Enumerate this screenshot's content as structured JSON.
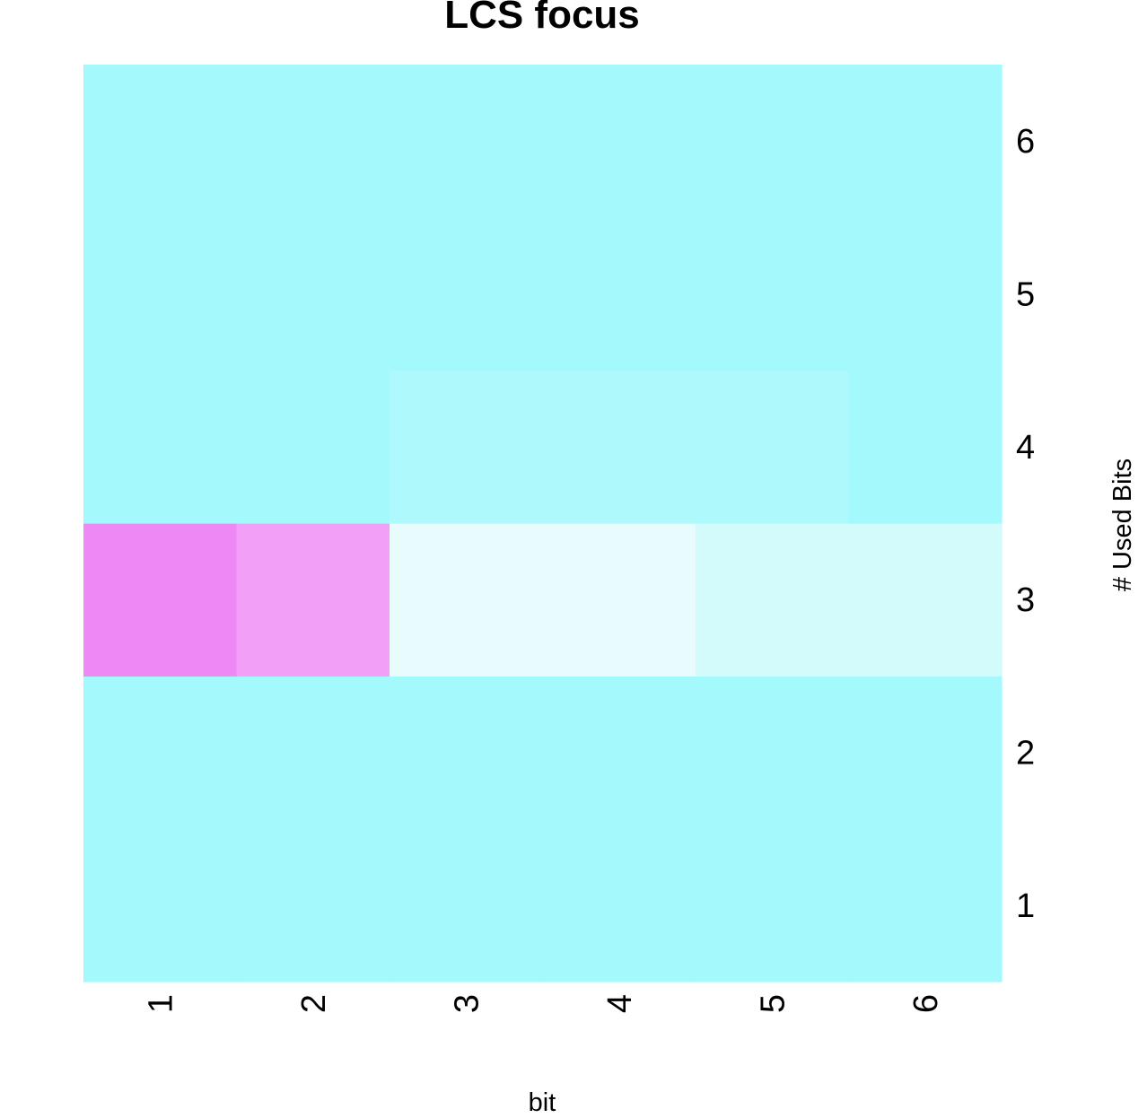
{
  "chart_data": {
    "type": "heatmap",
    "title": "LCS focus",
    "xlabel": "bit",
    "ylabel": "# Used Bits",
    "x_categories": [
      "1",
      "2",
      "3",
      "4",
      "5",
      "6"
    ],
    "y_categories": [
      "1",
      "2",
      "3",
      "4",
      "5",
      "6"
    ],
    "cells": [
      {
        "x": "1",
        "y": "1",
        "color": "#A3F9FC"
      },
      {
        "x": "2",
        "y": "1",
        "color": "#A3F9FC"
      },
      {
        "x": "3",
        "y": "1",
        "color": "#A3F9FC"
      },
      {
        "x": "4",
        "y": "1",
        "color": "#A3F9FC"
      },
      {
        "x": "5",
        "y": "1",
        "color": "#A3F9FC"
      },
      {
        "x": "6",
        "y": "1",
        "color": "#A3F9FC"
      },
      {
        "x": "1",
        "y": "2",
        "color": "#A3F9FC"
      },
      {
        "x": "2",
        "y": "2",
        "color": "#A3F9FC"
      },
      {
        "x": "3",
        "y": "2",
        "color": "#A3F9FC"
      },
      {
        "x": "4",
        "y": "2",
        "color": "#A3F9FC"
      },
      {
        "x": "5",
        "y": "2",
        "color": "#A3F9FC"
      },
      {
        "x": "6",
        "y": "2",
        "color": "#A3F9FC"
      },
      {
        "x": "1",
        "y": "3",
        "color": "#EE88F5"
      },
      {
        "x": "2",
        "y": "3",
        "color": "#F19FF7"
      },
      {
        "x": "3",
        "y": "3",
        "color": "#E8FCFD"
      },
      {
        "x": "4",
        "y": "3",
        "color": "#E8FCFD"
      },
      {
        "x": "5",
        "y": "3",
        "color": "#D3FBFC"
      },
      {
        "x": "6",
        "y": "3",
        "color": "#D3FBFC"
      },
      {
        "x": "1",
        "y": "4",
        "color": "#A3F9FC"
      },
      {
        "x": "2",
        "y": "4",
        "color": "#A3F9FC"
      },
      {
        "x": "3",
        "y": "4",
        "color": "#ADF9FC"
      },
      {
        "x": "4",
        "y": "4",
        "color": "#ADF9FC"
      },
      {
        "x": "5",
        "y": "4",
        "color": "#ADF9FC"
      },
      {
        "x": "6",
        "y": "4",
        "color": "#A3F9FC"
      },
      {
        "x": "1",
        "y": "5",
        "color": "#A3F9FC"
      },
      {
        "x": "2",
        "y": "5",
        "color": "#A3F9FC"
      },
      {
        "x": "3",
        "y": "5",
        "color": "#A3F9FC"
      },
      {
        "x": "4",
        "y": "5",
        "color": "#A3F9FC"
      },
      {
        "x": "5",
        "y": "5",
        "color": "#A3F9FC"
      },
      {
        "x": "6",
        "y": "5",
        "color": "#A3F9FC"
      },
      {
        "x": "1",
        "y": "6",
        "color": "#A3F9FC"
      },
      {
        "x": "2",
        "y": "6",
        "color": "#A3F9FC"
      },
      {
        "x": "3",
        "y": "6",
        "color": "#A3F9FC"
      },
      {
        "x": "4",
        "y": "6",
        "color": "#A3F9FC"
      },
      {
        "x": "5",
        "y": "6",
        "color": "#A3F9FC"
      },
      {
        "x": "6",
        "y": "6",
        "color": "#A3F9FC"
      }
    ],
    "grid": false,
    "legend": "none"
  }
}
